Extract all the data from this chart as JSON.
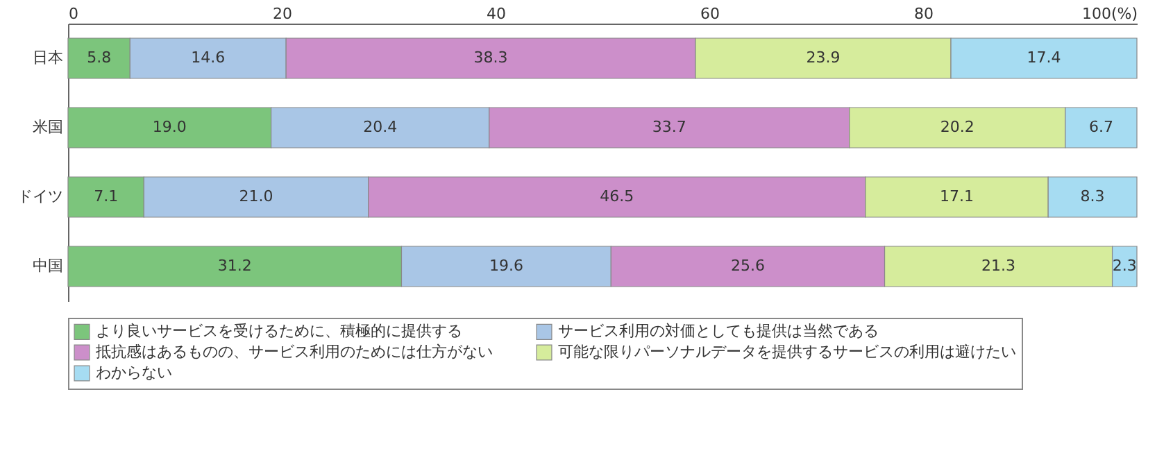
{
  "chart_data": {
    "type": "bar",
    "orientation": "horizontal",
    "stacked": true,
    "legend": "bottom",
    "categories": [
      "日本",
      "米国",
      "ドイツ",
      "中国"
    ],
    "xlim": [
      0,
      100
    ],
    "xticks": [
      0,
      20,
      40,
      60,
      80,
      {
        "value": 100,
        "label": "100(%)"
      }
    ],
    "series": [
      {
        "name": "より良いサービスを受けるために、積極的に提供する",
        "color": "#7cc57c",
        "values": [
          5.8,
          19.0,
          7.1,
          31.2
        ],
        "value_labels": [
          "5.8",
          "19.0",
          "7.1",
          "31.2"
        ]
      },
      {
        "name": "サービス利用の対価としても提供は当然である",
        "color": "#a9c6e6",
        "values": [
          14.6,
          20.4,
          21.0,
          19.6
        ],
        "value_labels": [
          "14.6",
          "20.4",
          "21.0",
          "19.6"
        ]
      },
      {
        "name": "抵抗感はあるものの、サービス利用のためには仕方がない",
        "color": "#cc8fca",
        "values": [
          38.3,
          33.7,
          46.5,
          25.6
        ],
        "value_labels": [
          "38.3",
          "33.7",
          "46.5",
          "25.6"
        ]
      },
      {
        "name": "可能な限りパーソナルデータを提供するサービスの利用は避けたい",
        "color": "#d6ec9c",
        "values": [
          23.9,
          20.2,
          17.1,
          21.3
        ],
        "value_labels": [
          "23.9",
          "20.2",
          "17.1",
          "21.3"
        ]
      },
      {
        "name": "わからない",
        "color": "#a6dcf2",
        "values": [
          17.4,
          6.7,
          8.3,
          2.3
        ],
        "value_labels": [
          "17.4",
          "6.7",
          "8.3",
          "2.3"
        ]
      }
    ]
  }
}
